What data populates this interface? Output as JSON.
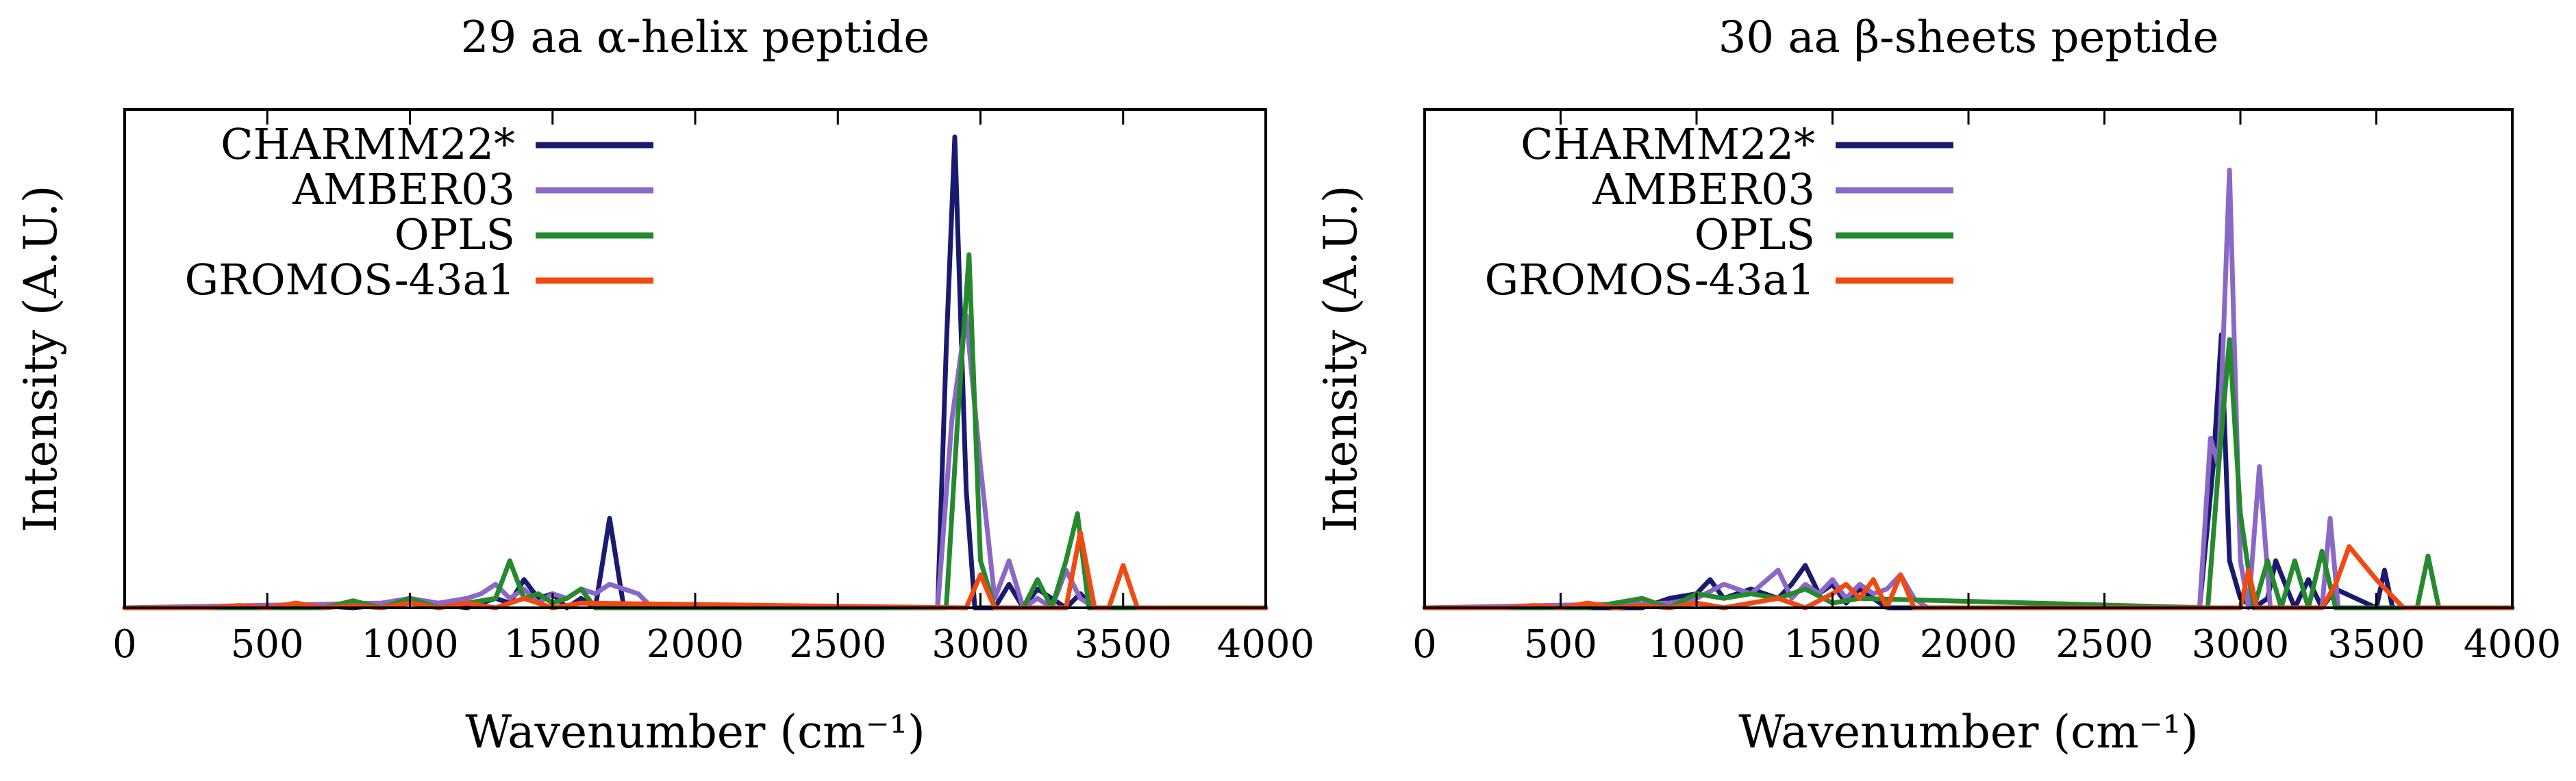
{
  "chart_data": [
    {
      "type": "line",
      "title": "29 aa α-helix peptide",
      "xlabel": "Wavenumber (cm⁻¹)",
      "ylabel": "Intensity (A.U.)",
      "xlim": [
        0,
        4000
      ],
      "ylim": [
        0,
        1
      ],
      "xticks": [
        0,
        500,
        1000,
        1500,
        2000,
        2500,
        3000,
        3500,
        4000
      ],
      "legend_position": "top-left",
      "series": [
        {
          "name": "CHARMM22*",
          "color": "#1a1a6e",
          "x": [
            0,
            600,
            700,
            800,
            900,
            1000,
            1100,
            1200,
            1300,
            1350,
            1400,
            1450,
            1500,
            1550,
            1600,
            1650,
            1700,
            1750,
            1800,
            2850,
            2880,
            2910,
            2950,
            2980,
            3050,
            3100,
            3150,
            3200,
            3300,
            3350,
            3400,
            4000
          ],
          "y": [
            0,
            0,
            0.004,
            0,
            0.006,
            0.01,
            0.008,
            0,
            0.02,
            0.01,
            0.06,
            0.02,
            0.03,
            0,
            0.02,
            0,
            0.19,
            0,
            0,
            0,
            0.55,
            1.0,
            0.25,
            0,
            0,
            0.05,
            0,
            0.04,
            0,
            0.03,
            0,
            0
          ]
        },
        {
          "name": "AMBER03",
          "color": "#8b68c6",
          "x": [
            0,
            900,
            1000,
            1100,
            1200,
            1250,
            1300,
            1350,
            1400,
            1450,
            1500,
            1550,
            1600,
            1650,
            1700,
            1750,
            1800,
            1850,
            2850,
            2900,
            2950,
            3000,
            3050,
            3100,
            3150,
            3200,
            3250,
            3300,
            3350,
            3400,
            4000
          ],
          "y": [
            0,
            0.01,
            0.02,
            0.01,
            0.02,
            0.03,
            0.05,
            0.02,
            0.04,
            0.01,
            0.03,
            0.02,
            0.04,
            0.03,
            0.05,
            0.04,
            0.03,
            0,
            0,
            0.4,
            0.62,
            0.3,
            0.02,
            0.1,
            0,
            0.02,
            0,
            0.08,
            0.02,
            0,
            0
          ]
        },
        {
          "name": "OPLS",
          "color": "#258a2e",
          "x": [
            0,
            700,
            800,
            900,
            1000,
            1100,
            1200,
            1300,
            1350,
            1400,
            1450,
            1500,
            1550,
            1600,
            1650,
            2880,
            2920,
            2960,
            3000,
            3050,
            3150,
            3200,
            3250,
            3300,
            3340,
            3380,
            4000
          ],
          "y": [
            0,
            0,
            0.015,
            0,
            0.02,
            0,
            0.01,
            0.02,
            0.1,
            0.02,
            0.03,
            0.01,
            0.02,
            0.04,
            0,
            0,
            0.4,
            0.75,
            0.1,
            0,
            0,
            0.06,
            0,
            0.1,
            0.2,
            0,
            0
          ]
        },
        {
          "name": "GROMOS-43a1",
          "color": "#f04a12",
          "x": [
            0,
            300,
            400,
            500,
            600,
            700,
            800,
            900,
            1000,
            1100,
            1200,
            1300,
            1400,
            1500,
            1600,
            2950,
            3000,
            3050,
            3300,
            3350,
            3400,
            3450,
            3500,
            3550,
            4000
          ],
          "y": [
            0,
            0,
            0.005,
            0,
            0.01,
            0,
            0.005,
            0,
            0.01,
            0,
            0.01,
            0,
            0.02,
            0,
            0.01,
            0,
            0.07,
            0,
            0,
            0.16,
            0,
            0,
            0.09,
            0,
            0
          ]
        }
      ]
    },
    {
      "type": "line",
      "title": "30 aa β-sheets peptide",
      "xlabel": "Wavenumber (cm⁻¹)",
      "ylabel": "Intensity (A.U.)",
      "xlim": [
        0,
        4000
      ],
      "ylim": [
        0,
        1
      ],
      "xticks": [
        0,
        500,
        1000,
        1500,
        2000,
        2500,
        3000,
        3500,
        4000
      ],
      "legend_position": "top-left",
      "series": [
        {
          "name": "CHARMM22*",
          "color": "#1a1a6e",
          "x": [
            0,
            800,
            900,
            1000,
            1050,
            1100,
            1200,
            1300,
            1350,
            1400,
            1450,
            1500,
            1550,
            1600,
            1700,
            2850,
            2900,
            2930,
            2960,
            3000,
            3050,
            3100,
            3130,
            3200,
            3250,
            3300,
            3350,
            3500,
            3530,
            3560,
            4000
          ],
          "y": [
            0,
            0,
            0.02,
            0.03,
            0.06,
            0.02,
            0.04,
            0.02,
            0.05,
            0.09,
            0.03,
            0.05,
            0.01,
            0.04,
            0,
            0,
            0.3,
            0.58,
            0.1,
            0.02,
            0,
            0.02,
            0.1,
            0,
            0.06,
            0,
            0.04,
            0,
            0.08,
            0,
            0
          ]
        },
        {
          "name": "AMBER03",
          "color": "#8b68c6",
          "x": [
            0,
            900,
            1000,
            1100,
            1200,
            1300,
            1350,
            1400,
            1450,
            1500,
            1550,
            1600,
            1650,
            1700,
            1750,
            1800,
            1850,
            2850,
            2890,
            2920,
            2960,
            3000,
            3030,
            3070,
            3110,
            3150,
            3200,
            3300,
            3330,
            3360,
            4000
          ],
          "y": [
            0,
            0.01,
            0.02,
            0.05,
            0.03,
            0.08,
            0.02,
            0.05,
            0.03,
            0.06,
            0.02,
            0.05,
            0.03,
            0.04,
            0.07,
            0.02,
            0,
            0,
            0.36,
            0.3,
            0.93,
            0.1,
            0,
            0.3,
            0,
            0,
            0,
            0,
            0.19,
            0,
            0
          ]
        },
        {
          "name": "OPLS",
          "color": "#258a2e",
          "x": [
            0,
            600,
            700,
            800,
            900,
            1000,
            1100,
            1200,
            1300,
            1400,
            1500,
            1600,
            2880,
            2920,
            2960,
            3000,
            3050,
            3100,
            3150,
            3200,
            3250,
            3300,
            3350,
            3650,
            3690,
            3730,
            4000
          ],
          "y": [
            0,
            0,
            0.01,
            0.02,
            0,
            0.03,
            0.02,
            0.03,
            0.02,
            0.04,
            0.01,
            0.02,
            0,
            0.3,
            0.57,
            0.2,
            0,
            0.1,
            0,
            0.1,
            0,
            0.12,
            0,
            0,
            0.11,
            0,
            0
          ]
        },
        {
          "name": "GROMOS-43a1",
          "color": "#f04a12",
          "x": [
            0,
            300,
            400,
            500,
            600,
            700,
            800,
            900,
            1000,
            1100,
            1200,
            1300,
            1400,
            1500,
            1550,
            1600,
            1650,
            1700,
            1750,
            1800,
            3000,
            3030,
            3060,
            3300,
            3350,
            3400,
            3500,
            3600,
            4000
          ],
          "y": [
            0,
            0,
            0.005,
            0,
            0.01,
            0,
            0.005,
            0,
            0.01,
            0,
            0.01,
            0.02,
            0,
            0.03,
            0.05,
            0.02,
            0.06,
            0,
            0.07,
            0,
            0,
            0.08,
            0,
            0,
            0.05,
            0.13,
            0.06,
            0,
            0
          ]
        }
      ]
    }
  ]
}
